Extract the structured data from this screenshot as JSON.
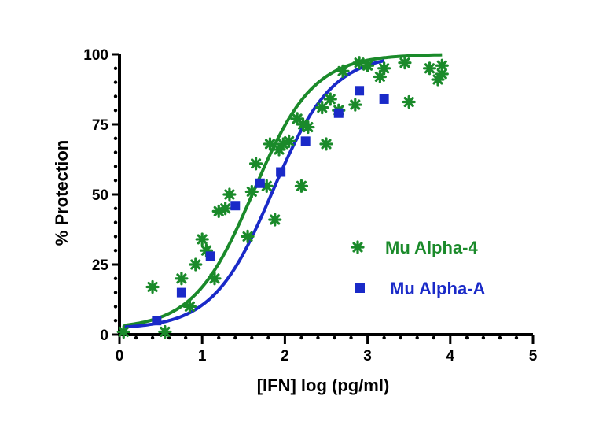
{
  "chart_data": {
    "type": "scatter",
    "title": "",
    "xlabel": "[IFN] log (pg/ml)",
    "ylabel": "% Protection",
    "xlim": [
      0,
      5
    ],
    "ylim": [
      0,
      100
    ],
    "x_ticks": [
      "0",
      "1",
      "2",
      "3",
      "4",
      "5"
    ],
    "y_ticks": [
      "0",
      "25",
      "50",
      "75",
      "100"
    ],
    "grid": false,
    "legend_position": "right",
    "series": [
      {
        "name": "Mu Alpha-4",
        "color": "#1a8a2a",
        "marker": "asterisk",
        "fit": {
          "bottom": 2,
          "top": 100,
          "logec50": 1.62,
          "hill": 0.6,
          "x_range": [
            0.05,
            3.9
          ]
        },
        "points": [
          {
            "x": 0.05,
            "y": 1
          },
          {
            "x": 0.4,
            "y": 17
          },
          {
            "x": 0.55,
            "y": 1
          },
          {
            "x": 0.75,
            "y": 20
          },
          {
            "x": 0.85,
            "y": 10
          },
          {
            "x": 0.92,
            "y": 25
          },
          {
            "x": 1.0,
            "y": 34
          },
          {
            "x": 1.05,
            "y": 30
          },
          {
            "x": 1.15,
            "y": 20
          },
          {
            "x": 1.2,
            "y": 44
          },
          {
            "x": 1.28,
            "y": 45
          },
          {
            "x": 1.33,
            "y": 50
          },
          {
            "x": 1.55,
            "y": 35
          },
          {
            "x": 1.6,
            "y": 51
          },
          {
            "x": 1.65,
            "y": 61
          },
          {
            "x": 1.78,
            "y": 53
          },
          {
            "x": 1.82,
            "y": 68
          },
          {
            "x": 1.88,
            "y": 41
          },
          {
            "x": 1.93,
            "y": 66
          },
          {
            "x": 1.98,
            "y": 68
          },
          {
            "x": 2.05,
            "y": 69
          },
          {
            "x": 2.15,
            "y": 77
          },
          {
            "x": 2.2,
            "y": 53
          },
          {
            "x": 2.22,
            "y": 75
          },
          {
            "x": 2.28,
            "y": 74
          },
          {
            "x": 2.45,
            "y": 81
          },
          {
            "x": 2.5,
            "y": 68
          },
          {
            "x": 2.55,
            "y": 84
          },
          {
            "x": 2.65,
            "y": 80
          },
          {
            "x": 2.7,
            "y": 94
          },
          {
            "x": 2.85,
            "y": 82
          },
          {
            "x": 2.9,
            "y": 97
          },
          {
            "x": 3.0,
            "y": 96
          },
          {
            "x": 3.15,
            "y": 92
          },
          {
            "x": 3.2,
            "y": 95
          },
          {
            "x": 3.45,
            "y": 97
          },
          {
            "x": 3.5,
            "y": 83
          },
          {
            "x": 3.75,
            "y": 95
          },
          {
            "x": 3.85,
            "y": 91
          },
          {
            "x": 3.9,
            "y": 96
          },
          {
            "x": 3.9,
            "y": 93
          }
        ]
      },
      {
        "name": "Mu Alpha-A",
        "color": "#1a2ac8",
        "marker": "square",
        "fit": {
          "bottom": 2,
          "top": 100,
          "logec50": 1.85,
          "hill": 0.6,
          "x_range": [
            0.05,
            3.2
          ]
        },
        "points": [
          {
            "x": 0.45,
            "y": 5
          },
          {
            "x": 0.75,
            "y": 15
          },
          {
            "x": 1.1,
            "y": 28
          },
          {
            "x": 1.4,
            "y": 46
          },
          {
            "x": 1.7,
            "y": 54
          },
          {
            "x": 1.95,
            "y": 58
          },
          {
            "x": 2.25,
            "y": 69
          },
          {
            "x": 2.65,
            "y": 79
          },
          {
            "x": 2.9,
            "y": 87
          },
          {
            "x": 3.2,
            "y": 84
          }
        ]
      }
    ]
  }
}
